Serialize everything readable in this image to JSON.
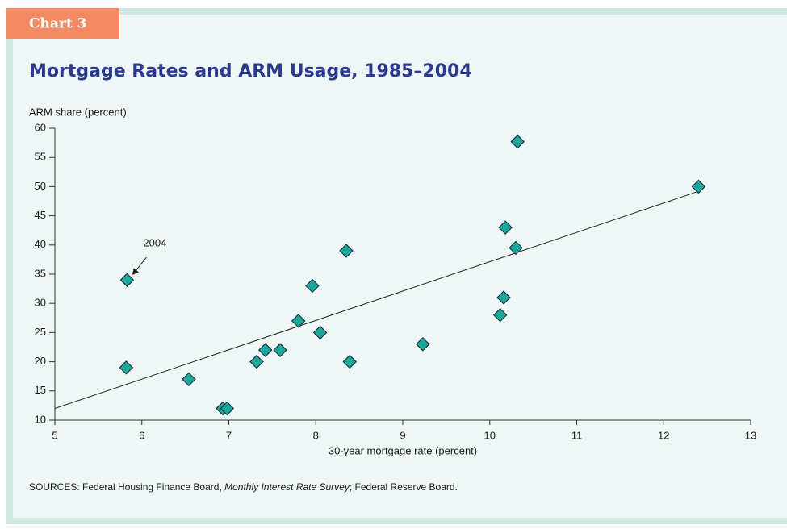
{
  "chart_data": {
    "type": "scatter",
    "label": "Chart 3",
    "title": "Mortgage Rates and ARM Usage, 1985–2004",
    "y_axis_label": "ARM share (percent)",
    "x_axis_label": "30-year mortgage rate (percent)",
    "source": [
      "SOURCES: Federal Housing Finance Board, ",
      "Monthly Interest Rate Survey",
      "; Federal Reserve Board."
    ],
    "annotation": "2004",
    "color": "#1ba79a",
    "xlim": [
      5,
      13
    ],
    "xticks": [
      5,
      6,
      7,
      8,
      9,
      10,
      11,
      12,
      13
    ],
    "ylim": [
      10,
      60
    ],
    "yticks": [
      10,
      15,
      20,
      25,
      30,
      35,
      40,
      45,
      50,
      55,
      60
    ],
    "x": [
      5.82,
      6.54,
      6.93,
      6.98,
      7.32,
      7.42,
      7.59,
      7.8,
      7.96,
      8.05,
      8.35,
      8.39,
      9.23,
      10.12,
      10.16,
      10.18,
      10.3,
      10.32,
      12.4,
      5.83
    ],
    "values": [
      19,
      17,
      12,
      12,
      20,
      22,
      22,
      27,
      33,
      25,
      39,
      20,
      23,
      28,
      31,
      43,
      39.5,
      57.7,
      50,
      34
    ],
    "trendline": {
      "x": [
        5,
        12.4
      ],
      "y": [
        12,
        49.2
      ]
    }
  }
}
